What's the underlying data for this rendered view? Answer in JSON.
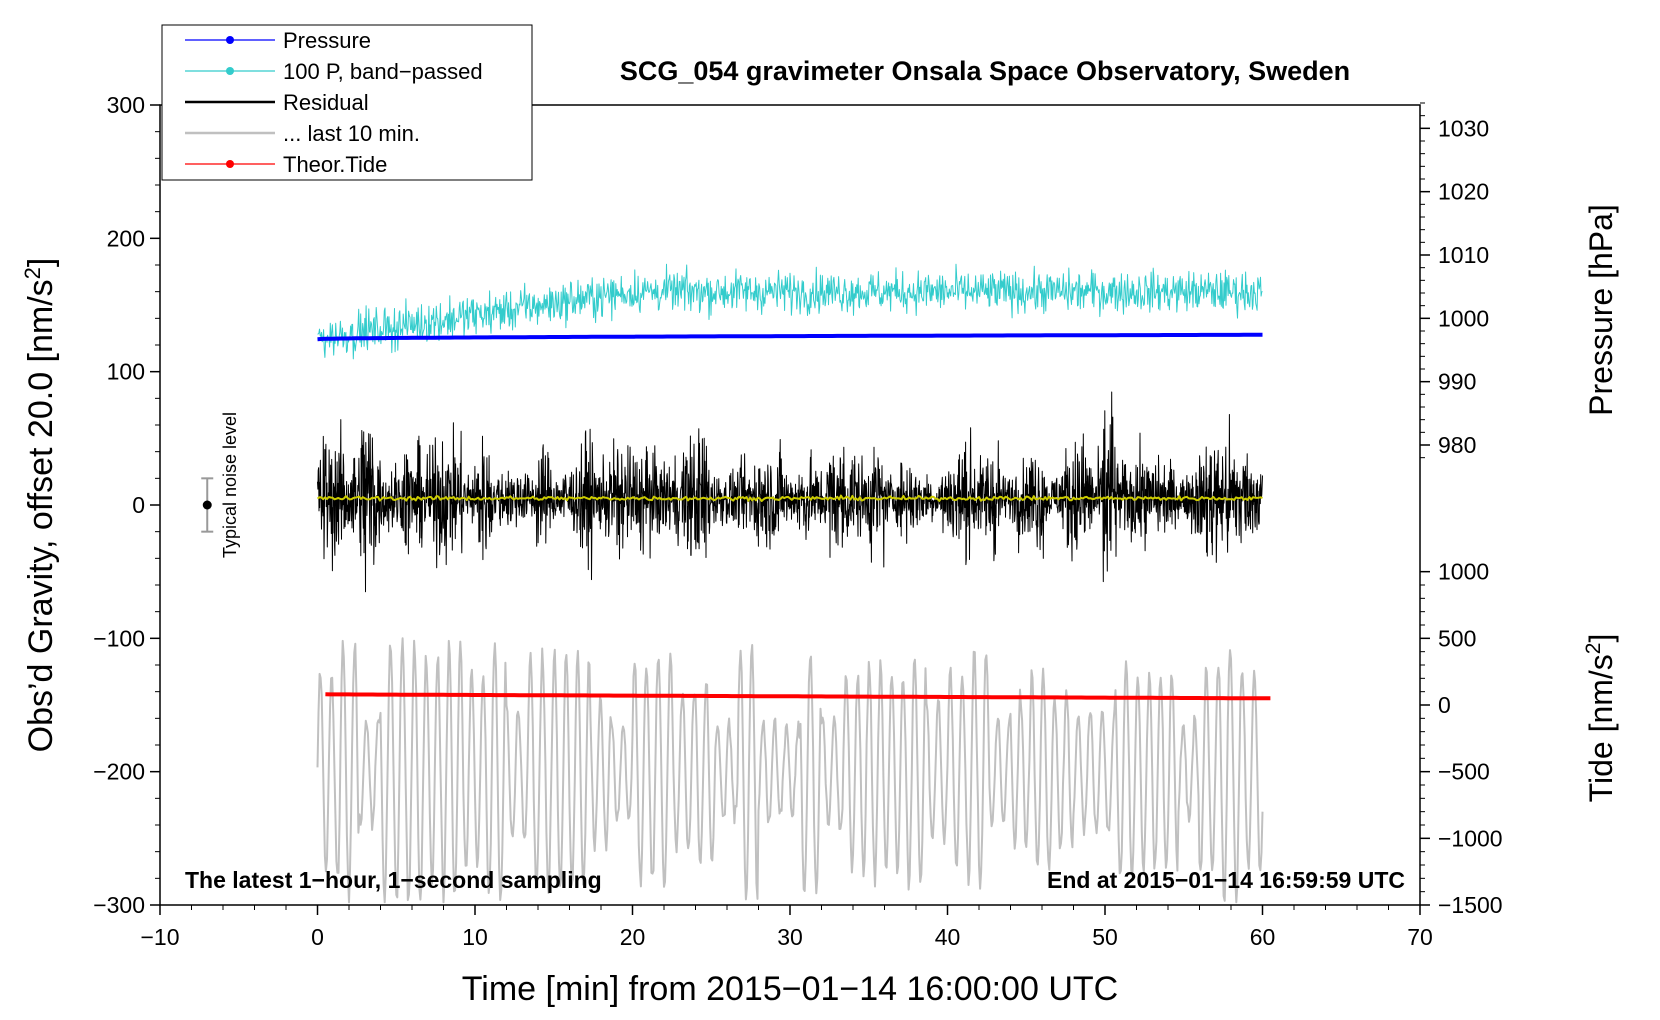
{
  "chart_data": {
    "type": "line",
    "title": "SCG_054 gravimeter Onsala Space Observatory, Sweden",
    "xlabel": "Time [min] from 2015−01−14 16:00:00 UTC",
    "ylabel": "Obs’d Gravity, offset 20.0 [nm/s",
    "ylabel_sup": "2",
    "ylabel_end": "]",
    "right_top_label": "Pressure [hPa]",
    "right_bottom_label": "Tide [nm/s",
    "right_bottom_sup": "2",
    "right_bottom_end": "]",
    "xlim": [
      -10,
      70
    ],
    "ylim": [
      -300,
      300
    ],
    "x_ticks": [
      "−10",
      "0",
      "10",
      "20",
      "30",
      "40",
      "50",
      "60",
      "70"
    ],
    "y_ticks": [
      "300",
      "200",
      "100",
      "0",
      "−100",
      "−200",
      "−300"
    ],
    "pressure_ticks": [
      "1030",
      "1020",
      "1010",
      "1000",
      "990",
      "980"
    ],
    "tide_ticks": [
      "1000",
      "500",
      "0",
      "−500",
      "−1000",
      "−1500"
    ],
    "pressure_axis": {
      "ref": [
        1000,
        980
      ],
      "gravity_at_ref": [
        140,
        45
      ]
    },
    "tide_axis": {
      "ref": [
        1000,
        -1500
      ],
      "gravity_at_ref": [
        -50,
        -300
      ]
    },
    "annotation_left": "The latest 1−hour, 1−second sampling",
    "annotation_right": "End at 2015−01−14 16:59:59 UTC",
    "noise_label": "Typical noise level",
    "noise_bar": {
      "x": -7,
      "center": 0,
      "half_range": 20
    },
    "legend": [
      {
        "label": "Pressure",
        "color": "#0000ff",
        "marker": true
      },
      {
        "label": "100 P, band−passed",
        "color": "#33cccc",
        "marker": true
      },
      {
        "label": "Residual",
        "color": "#000000",
        "marker": false
      },
      {
        "label": "... last 10 min.",
        "color": "#c0c0c0",
        "marker": false
      },
      {
        "label": "Theor.Tide",
        "color": "#ff0000",
        "marker": true
      }
    ],
    "series": [
      {
        "name": "Pressure",
        "color": "#0000ff",
        "units": "hPa",
        "x_range": [
          0,
          60
        ],
        "start": 996.7,
        "end": 997.4
      },
      {
        "name": "100 P, band−passed",
        "color": "#33cccc",
        "units": "nm/s2",
        "x_range": [
          0,
          60
        ],
        "start": 125,
        "end": 160,
        "amplitude": 30
      },
      {
        "name": "Residual",
        "color": "#000000",
        "units": "nm/s2",
        "x_range": [
          0,
          60
        ],
        "center": 5,
        "amplitude": 90
      },
      {
        "name": "... last 10 min.",
        "color": "#c0c0c0",
        "units": "nm/s2",
        "x_range": [
          0,
          60
        ],
        "center": -200,
        "amplitude": 90
      },
      {
        "name": "Theor.Tide",
        "color": "#ff0000",
        "units": "nm/s2",
        "x_range": [
          0.5,
          60.5
        ],
        "start": 80,
        "end": 50
      },
      {
        "name": "Mean residual",
        "color": "#cccc00",
        "units": "nm/s2",
        "x_range": [
          0,
          60
        ],
        "center": 5
      }
    ]
  }
}
